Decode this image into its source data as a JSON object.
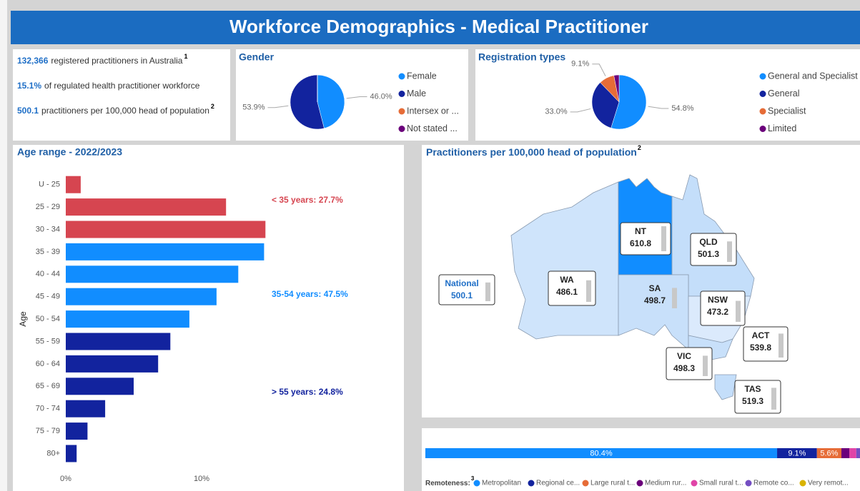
{
  "header": {
    "title": "Workforce Demographics - Medical Practitioner"
  },
  "kpis": [
    {
      "value": "132,366",
      "text": "registered practitioners in Australia",
      "note": "1"
    },
    {
      "value": "15.1%",
      "text": "of regulated health practitioner workforce"
    },
    {
      "value": "500.1",
      "text": "practitioners per 100,000 head of population",
      "note": "2"
    }
  ],
  "chart_data": [
    {
      "type": "pie",
      "title": "Gender",
      "categories": [
        "Female",
        "Male",
        "Intersex or ...",
        "Not stated ..."
      ],
      "values": [
        46.0,
        53.9,
        0.05,
        0.05
      ],
      "value_labels": [
        "46.0%",
        "53.9%",
        null,
        null
      ],
      "colors": [
        "#118dff",
        "#12239e",
        "#e66c37",
        "#6b007b"
      ]
    },
    {
      "type": "pie",
      "title": "Registration types",
      "categories": [
        "General and Specialist",
        "General",
        "Specialist",
        "Limited"
      ],
      "values": [
        54.8,
        33.0,
        9.1,
        3.1
      ],
      "value_labels": [
        "54.8%",
        "33.0%",
        "9.1%",
        null
      ],
      "colors": [
        "#118dff",
        "#12239e",
        "#e66c37",
        "#6b007b"
      ]
    },
    {
      "type": "bar",
      "orientation": "horizontal",
      "title": "Age range - 2022/2023",
      "y_label": "Age",
      "categories": [
        "U - 25",
        "25 - 29",
        "30 - 34",
        "35 - 39",
        "40 - 44",
        "45 - 49",
        "50 - 54",
        "55 - 59",
        "60 - 64",
        "65 - 69",
        "70 - 74",
        "75 - 79",
        "80+"
      ],
      "values": [
        1.1,
        11.8,
        14.7,
        14.6,
        12.7,
        11.1,
        9.1,
        7.7,
        6.8,
        5.0,
        2.9,
        1.6,
        0.8
      ],
      "colors": [
        "#d64550",
        "#d64550",
        "#d64550",
        "#118dff",
        "#118dff",
        "#118dff",
        "#118dff",
        "#12239e",
        "#12239e",
        "#12239e",
        "#12239e",
        "#12239e",
        "#12239e"
      ],
      "xlim": [
        0,
        24
      ],
      "xticks": [
        {
          "value": 0,
          "label": "0%"
        },
        {
          "value": 10,
          "label": "10%"
        }
      ],
      "annotations": [
        {
          "text": "< 35 years: 27.7%",
          "color": "#d64550"
        },
        {
          "text": "35-54 years: 47.5%",
          "color": "#118dff"
        },
        {
          "text": "> 55 years: 24.8%",
          "color": "#12239e"
        }
      ]
    },
    {
      "type": "stacked_bar",
      "legend_title": "Remoteness:",
      "legend_title_note": "3",
      "categories": [
        "Metropolitan",
        "Regional ce...",
        "Large rural t...",
        "Medium rur...",
        "Small rural t...",
        "Remote co...",
        "Very remot..."
      ],
      "values": [
        80.4,
        9.1,
        5.6,
        1.8,
        1.6,
        1.0,
        0.5
      ],
      "value_labels": [
        "80.4%",
        "9.1%",
        "5.6%",
        null,
        null,
        null,
        null
      ],
      "colors": [
        "#118dff",
        "#12239e",
        "#e66c37",
        "#6b007b",
        "#e044a7",
        "#744ec2",
        "#d9b300"
      ],
      "xlim": [
        0,
        100
      ]
    }
  ],
  "map": {
    "title": "Practitioners per 100,000 head of population",
    "title_note": "2",
    "regions": [
      {
        "name": "National",
        "value": 500.1
      },
      {
        "name": "WA",
        "value": 486.1
      },
      {
        "name": "NT",
        "value": 610.8
      },
      {
        "name": "SA",
        "value": 498.7
      },
      {
        "name": "QLD",
        "value": 501.3
      },
      {
        "name": "NSW",
        "value": 473.2
      },
      {
        "name": "ACT",
        "value": 539.8
      },
      {
        "name": "VIC",
        "value": 498.3
      },
      {
        "name": "TAS",
        "value": 519.3
      }
    ]
  }
}
